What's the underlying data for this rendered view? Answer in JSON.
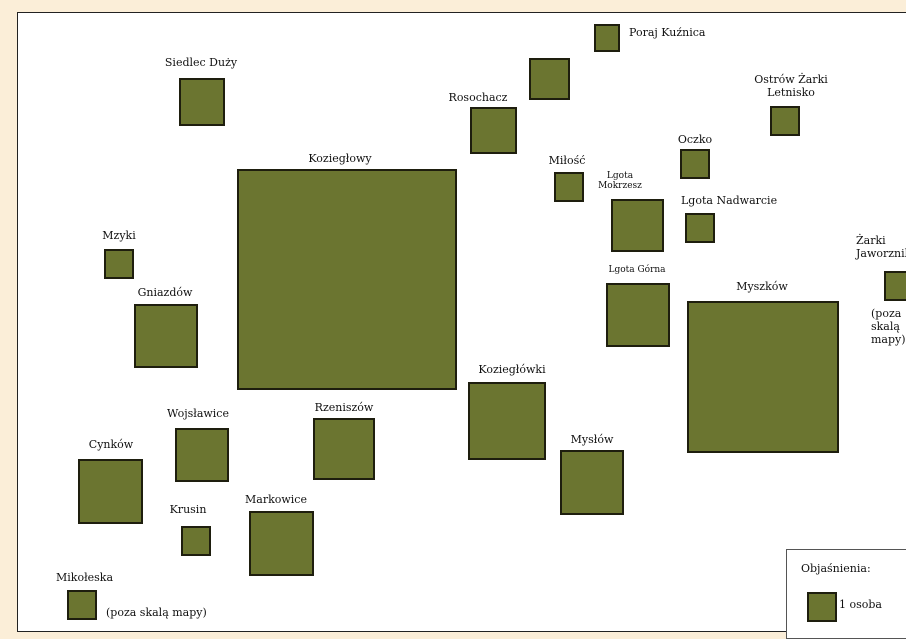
{
  "colors": {
    "fill": "#6b7530",
    "border": "#1e1e0e",
    "background": "#fbeed8"
  },
  "places": {
    "poraj_kuznica": "Poraj Kuźnica",
    "siedlec_duzy": "Siedlec Duży",
    "rosochacz": "Rosochacz",
    "ostrow_zarki_line1": "Ostrów Żarki",
    "ostrow_zarki_line2": "Letnisko",
    "oczko": "Oczko",
    "koziegolowy": "Koziegłowy",
    "milosc": "Miłość",
    "lgota_mokrzesz_line1": "Lgota",
    "lgota_mokrzesz_line2": "Mokrzesz",
    "lgota_nadwarcie": "Lgota Nadwarcie",
    "mzyki": "Mzyki",
    "zarki_line1": "Żarki",
    "zarki_line2": "Jaworznik",
    "zarki_note_line1": "(poza",
    "zarki_note_line2": "skalą",
    "zarki_note_line3": "mapy)",
    "lgota_gorna": "Lgota Górna",
    "myszkow": "Myszków",
    "gniazdow": "Gniazdów",
    "koziegolowki": "Koziegłówki",
    "wojslawice": "Wojsławice",
    "rzeniszow": "Rzeniszów",
    "cynkow": "Cynków",
    "myslow": "Mysłów",
    "krusin": "Krusin",
    "markowice": "Markowice",
    "mikoleska": "Mikołeska",
    "mikoleska_note": "(poza skalą mapy)"
  },
  "legend": {
    "title": "Objaśnienia:",
    "item_label": "1 osoba"
  }
}
